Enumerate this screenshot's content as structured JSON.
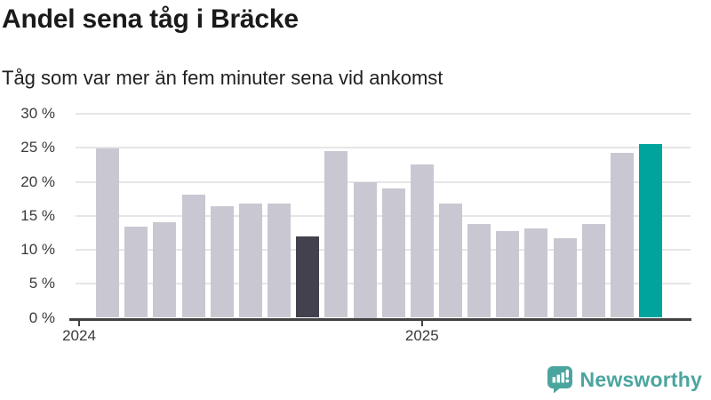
{
  "header": {
    "title": "Andel sena tåg i Bräcke",
    "subtitle": "Tåg som var mer än fem minuter sena vid ankomst"
  },
  "footer": {
    "brand": "Newsworthy"
  },
  "icons": {
    "logo_icon": "newsworthy-speech-bubble-bar-chart-icon"
  },
  "colors": {
    "background": "#ffffff",
    "title_text": "#1a1a1a",
    "subtitle_text": "#212121",
    "axis_text": "#3a3a3a",
    "gridline": "#e6e6e6",
    "axis_line": "#424242",
    "bar_default": "#c9c7d1",
    "bar_dark": "#42414d",
    "bar_teal": "#00a49c",
    "logo_teal": "#4ba59f"
  },
  "chart_data": {
    "type": "bar",
    "title": "Andel sena tåg i Bräcke",
    "subtitle": "Tåg som var mer än fem minuter sena vid ankomst",
    "unit": "%",
    "x": [
      "2024-02",
      "2024-03",
      "2024-04",
      "2024-05",
      "2024-06",
      "2024-07",
      "2024-08",
      "2024-09",
      "2024-10",
      "2024-11",
      "2024-12",
      "2025-01",
      "2025-02",
      "2025-03",
      "2025-04",
      "2025-05",
      "2025-06",
      "2025-07",
      "2025-08",
      "2025-09"
    ],
    "values": [
      24.9,
      13.4,
      14.1,
      18.1,
      16.4,
      16.8,
      16.8,
      11.9,
      24.5,
      20.0,
      19.0,
      22.6,
      16.8,
      13.8,
      12.7,
      13.2,
      11.7,
      13.8,
      24.2,
      25.5
    ],
    "highlight": {
      "dark_index": 7,
      "teal_index": 19,
      "dark_meaning": "same month previous year (2024-09)",
      "teal_meaning": "latest month (2025-09)"
    },
    "ylim": [
      0,
      30
    ],
    "yticks": [
      0,
      5,
      10,
      15,
      20,
      25,
      30
    ],
    "ytick_label_format": "{v} %",
    "xticks": [
      {
        "label": "2024",
        "month_offset": 0
      },
      {
        "label": "2025",
        "month_offset": 12
      }
    ],
    "first_bar_month_offset": 1,
    "grid": "horizontal",
    "legend": "none"
  }
}
